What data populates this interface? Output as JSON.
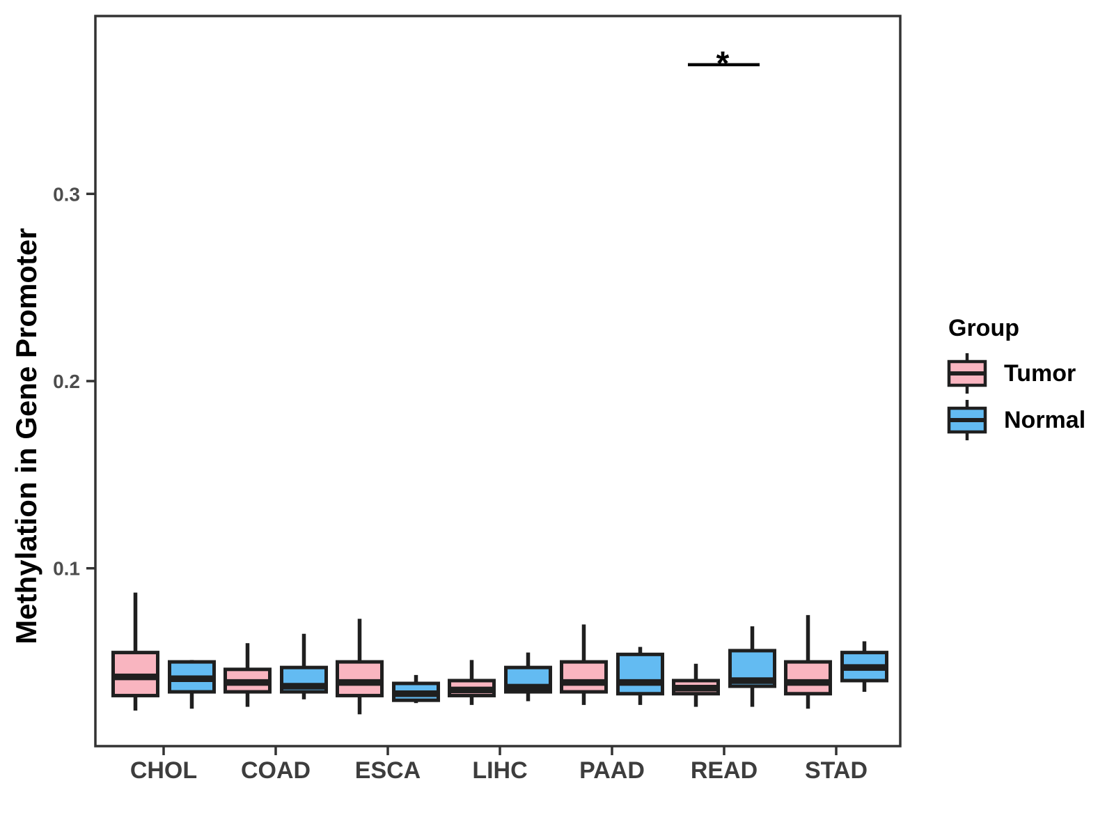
{
  "figure": {
    "y_axis_title": "Methylation in Gene Promoter",
    "legend": {
      "title": "Group",
      "items": [
        {
          "label": "Tumor",
          "color": "#F9B5C0"
        },
        {
          "label": "Normal",
          "color": "#63BBF2"
        }
      ]
    }
  },
  "chart_data": {
    "type": "boxplot",
    "title": "",
    "xlabel": "",
    "ylabel": "Methylation in Gene Promoter",
    "categories": [
      "CHOL",
      "COAD",
      "ESCA",
      "LIHC",
      "PAAD",
      "READ",
      "STAD"
    ],
    "groups": [
      "Tumor",
      "Normal"
    ],
    "colors": {
      "Tumor": "#F9B5C0",
      "Normal": "#63BBF2",
      "stroke": "#1f1f1f"
    },
    "yticks": [
      0.1,
      0.2,
      0.3
    ],
    "ylim": [
      0.005,
      0.395
    ],
    "grid": false,
    "legend_position": "right",
    "series": [
      {
        "name": "Tumor",
        "boxes": [
          {
            "category": "CHOL",
            "low": 0.024,
            "q1": 0.032,
            "median": 0.042,
            "q3": 0.055,
            "high": 0.087
          },
          {
            "category": "COAD",
            "low": 0.026,
            "q1": 0.034,
            "median": 0.039,
            "q3": 0.046,
            "high": 0.06
          },
          {
            "category": "ESCA",
            "low": 0.022,
            "q1": 0.032,
            "median": 0.039,
            "q3": 0.05,
            "high": 0.073
          },
          {
            "category": "LIHC",
            "low": 0.027,
            "q1": 0.032,
            "median": 0.035,
            "q3": 0.04,
            "high": 0.051
          },
          {
            "category": "PAAD",
            "low": 0.027,
            "q1": 0.034,
            "median": 0.039,
            "q3": 0.05,
            "high": 0.07
          },
          {
            "category": "READ",
            "low": 0.026,
            "q1": 0.033,
            "median": 0.036,
            "q3": 0.04,
            "high": 0.049
          },
          {
            "category": "STAD",
            "low": 0.025,
            "q1": 0.033,
            "median": 0.039,
            "q3": 0.05,
            "high": 0.075
          }
        ]
      },
      {
        "name": "Normal",
        "boxes": [
          {
            "category": "CHOL",
            "low": 0.025,
            "q1": 0.034,
            "median": 0.041,
            "q3": 0.05,
            "high": 0.051
          },
          {
            "category": "COAD",
            "low": 0.03,
            "q1": 0.034,
            "median": 0.037,
            "q3": 0.047,
            "high": 0.065
          },
          {
            "category": "ESCA",
            "low": 0.028,
            "q1": 0.0295,
            "median": 0.033,
            "q3": 0.0385,
            "high": 0.043
          },
          {
            "category": "LIHC",
            "low": 0.029,
            "q1": 0.034,
            "median": 0.0365,
            "q3": 0.047,
            "high": 0.055
          },
          {
            "category": "PAAD",
            "low": 0.027,
            "q1": 0.033,
            "median": 0.039,
            "q3": 0.054,
            "high": 0.058
          },
          {
            "category": "READ",
            "low": 0.026,
            "q1": 0.037,
            "median": 0.04,
            "q3": 0.056,
            "high": 0.069
          },
          {
            "category": "STAD",
            "low": 0.034,
            "q1": 0.04,
            "median": 0.047,
            "q3": 0.055,
            "high": 0.061
          }
        ]
      }
    ],
    "annotation": {
      "label": "*",
      "category": "READ",
      "line_y": 0.369
    }
  }
}
